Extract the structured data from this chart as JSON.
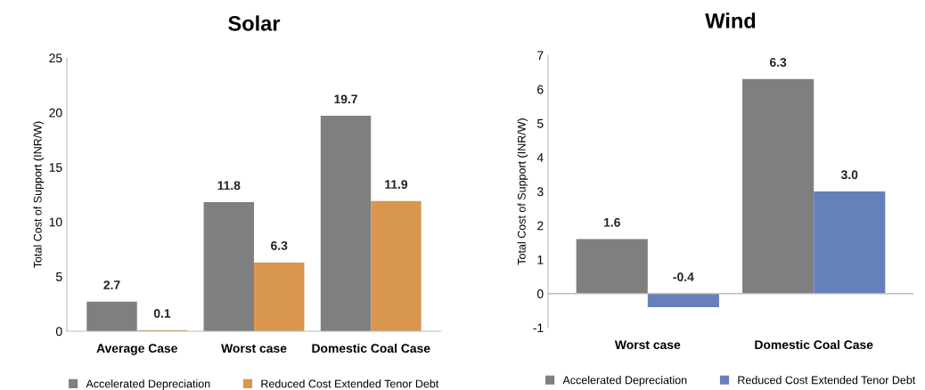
{
  "chart_data": [
    {
      "type": "bar",
      "title": "Solar",
      "ylabel": "Total Cost of Support (INR/W)",
      "categories": [
        "Average Case",
        "Worst case",
        "Domestic Coal Case"
      ],
      "series": [
        {
          "name": "Accelerated Depreciation",
          "color": "#7f7f7f",
          "values": [
            2.7,
            11.8,
            19.7
          ],
          "value_labels": [
            "2.7",
            "11.8",
            "19.7"
          ]
        },
        {
          "name": "Reduced Cost Extended Tenor Debt",
          "color": "#d9964f",
          "values": [
            0.1,
            6.3,
            11.9
          ],
          "value_labels": [
            "0.1",
            "6.3",
            "11.9"
          ]
        }
      ],
      "ylim": [
        0,
        25
      ],
      "yticks": [
        0,
        5,
        10,
        15,
        20,
        25
      ],
      "grid": false,
      "legend": "bottom"
    },
    {
      "type": "bar",
      "title": "Wind",
      "ylabel": "Total Cost of Support (INR/W)",
      "categories": [
        "Worst case",
        "Domestic Coal Case"
      ],
      "series": [
        {
          "name": "Accelerated Depreciation",
          "color": "#7f7f7f",
          "values": [
            1.6,
            6.3
          ],
          "value_labels": [
            "1.6",
            "6.3"
          ]
        },
        {
          "name": "Reduced Cost Extended Tenor Debt",
          "color": "#6680bb",
          "values": [
            -0.4,
            3.0
          ],
          "value_labels": [
            "-0.4",
            "3.0"
          ]
        }
      ],
      "ylim": [
        -1,
        7
      ],
      "yticks": [
        -1,
        0,
        1,
        2,
        3,
        4,
        5,
        6,
        7
      ],
      "ref_lines": [
        {
          "axis": "y",
          "value": 0,
          "color": "#bbbbbb"
        }
      ],
      "grid": false,
      "legend": "bottom"
    }
  ]
}
